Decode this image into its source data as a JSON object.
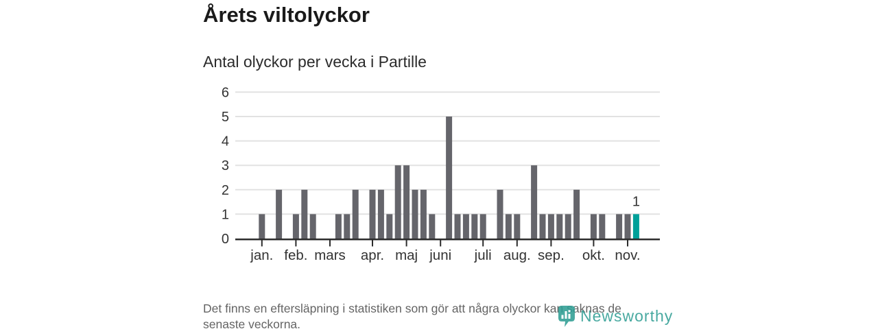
{
  "header": {
    "title": "Årets viltolyckor",
    "subtitle": "Antal olyckor per vecka i Partille"
  },
  "footer": {
    "lines": [
      "Det finns en eftersläpning i statistiken som gör att några olyckor kan saknas de",
      "senaste veckorna."
    ]
  },
  "branding": {
    "name": "Newsworthy",
    "icon": "newsworthy-pin-icon",
    "color": "#2f9e94"
  },
  "colors": {
    "bar": "#65656b",
    "highlight": "#00a099",
    "axis": "#2b2b2b",
    "grid": "#e2e2e2",
    "axis_label": "#333333",
    "value_label": "#333333",
    "title": "#1a1a1a",
    "subtitle": "#2b2b2b",
    "footnote": "#646464",
    "background": "#ffffff"
  },
  "chart_data": {
    "type": "bar",
    "title": "Årets viltolyckor",
    "subtitle": "Antal olyckor per vecka i Partille",
    "x_unit": "vecka",
    "first_week": 1,
    "values": [
      1,
      0,
      2,
      0,
      1,
      2,
      1,
      0,
      0,
      1,
      1,
      2,
      0,
      2,
      2,
      1,
      3,
      3,
      2,
      2,
      1,
      0,
      5,
      1,
      1,
      1,
      1,
      0,
      2,
      1,
      1,
      0,
      3,
      1,
      1,
      1,
      1,
      2,
      0,
      1,
      1,
      0,
      1,
      1,
      1
    ],
    "highlight_last_bar": true,
    "last_bar_value_label": "1",
    "ylim": [
      0,
      6
    ],
    "yticks": [
      0,
      1,
      2,
      3,
      4,
      5,
      6
    ],
    "month_ticks": [
      {
        "week": 1,
        "label": "jan."
      },
      {
        "week": 5,
        "label": "feb."
      },
      {
        "week": 9,
        "label": "mars"
      },
      {
        "week": 14,
        "label": "apr."
      },
      {
        "week": 18,
        "label": "maj"
      },
      {
        "week": 22,
        "label": "juni"
      },
      {
        "week": 27,
        "label": "juli"
      },
      {
        "week": 31,
        "label": "aug."
      },
      {
        "week": 35,
        "label": "sep."
      },
      {
        "week": 40,
        "label": "okt."
      },
      {
        "week": 44,
        "label": "nov."
      }
    ],
    "grid": true
  }
}
